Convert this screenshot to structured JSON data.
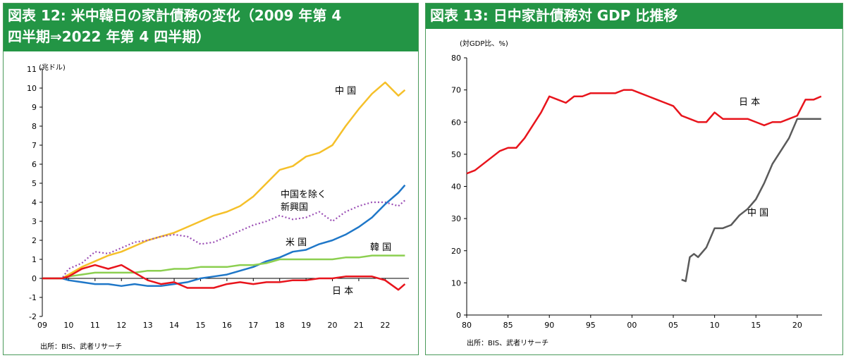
{
  "left": {
    "title_line1": "図表 12: 米中韓日の家計債務の変化（2009 年第 4",
    "title_line2": "四半期⇒2022 年第 4 四半期）",
    "unit": "(兆ドル)",
    "source": "出所：BIS、武者リサーチ",
    "annotations": {
      "china": "中 国",
      "em_line1": "中国を除く",
      "em_line2": "新興国",
      "us": "米 国",
      "korea": "韓 国",
      "japan": "日 本"
    }
  },
  "right": {
    "title": "図表 13: 日中家計債務対 GDP 比推移",
    "unit": "(対GDP比、%)",
    "source": "出所：BIS、武者リサーチ",
    "annotations": {
      "japan": "日 本",
      "china": "中 国"
    }
  },
  "colors": {
    "header_bg": "#239545",
    "china_left": "#f5c02a",
    "us": "#1f77c8",
    "korea": "#8ccf50",
    "japan": "#e8141c",
    "em_ex_china": "#9b4fb5",
    "china_right": "#5a5a5a"
  },
  "chart_data": [
    {
      "type": "line",
      "title": "図表 12: 米中韓日の家計債務の変化（2009 年第 4 四半期⇒2022 年第 4 四半期）",
      "ylabel": "(兆ドル)",
      "xlim": [
        2009,
        2022.9
      ],
      "ylim": [
        -2,
        11
      ],
      "x_ticks": [
        "09",
        "10",
        "11",
        "12",
        "13",
        "14",
        "15",
        "16",
        "17",
        "18",
        "19",
        "20",
        "21",
        "22"
      ],
      "y_ticks": [
        -2,
        -1,
        0,
        1,
        2,
        3,
        4,
        5,
        6,
        7,
        8,
        9,
        10,
        11
      ],
      "grid": false,
      "x": [
        2009.75,
        2010,
        2010.5,
        2011,
        2011.5,
        2012,
        2012.5,
        2013,
        2013.5,
        2014,
        2014.5,
        2015,
        2015.5,
        2016,
        2016.5,
        2017,
        2017.5,
        2018,
        2018.5,
        2019,
        2019.5,
        2020,
        2020.5,
        2021,
        2021.5,
        2022,
        2022.5,
        2022.75
      ],
      "series": [
        {
          "name": "中 国",
          "values": [
            0,
            0.2,
            0.6,
            0.9,
            1.2,
            1.4,
            1.7,
            2.0,
            2.2,
            2.4,
            2.7,
            3.0,
            3.3,
            3.5,
            3.8,
            4.3,
            5.0,
            5.7,
            5.9,
            6.4,
            6.6,
            7.0,
            8.0,
            8.9,
            9.7,
            10.3,
            9.6,
            9.9
          ]
        },
        {
          "name": "中国を除く新興国",
          "values": [
            0,
            0.5,
            0.8,
            1.4,
            1.3,
            1.6,
            1.9,
            2.0,
            2.2,
            2.3,
            2.2,
            1.8,
            1.9,
            2.2,
            2.5,
            2.8,
            3.0,
            3.3,
            3.1,
            3.2,
            3.5,
            3.0,
            3.5,
            3.8,
            4.0,
            4.0,
            3.8,
            4.1
          ]
        },
        {
          "name": "米 国",
          "values": [
            0,
            -0.1,
            -0.2,
            -0.3,
            -0.3,
            -0.4,
            -0.3,
            -0.4,
            -0.4,
            -0.3,
            -0.2,
            0,
            0.1,
            0.2,
            0.4,
            0.6,
            0.9,
            1.1,
            1.4,
            1.5,
            1.8,
            2.0,
            2.3,
            2.7,
            3.2,
            3.9,
            4.5,
            4.9
          ]
        },
        {
          "name": "韓 国",
          "values": [
            0,
            0.1,
            0.2,
            0.3,
            0.3,
            0.3,
            0.3,
            0.4,
            0.4,
            0.5,
            0.5,
            0.6,
            0.6,
            0.6,
            0.7,
            0.7,
            0.8,
            1.0,
            1.0,
            1.0,
            1.0,
            1.0,
            1.1,
            1.1,
            1.2,
            1.2,
            1.2,
            1.2
          ]
        },
        {
          "name": "日 本",
          "values": [
            0,
            0.1,
            0.5,
            0.7,
            0.5,
            0.7,
            0.3,
            -0.1,
            -0.3,
            -0.2,
            -0.5,
            -0.5,
            -0.5,
            -0.3,
            -0.2,
            -0.3,
            -0.2,
            -0.2,
            -0.1,
            -0.1,
            0,
            0,
            0.1,
            0.1,
            0.1,
            -0.1,
            -0.6,
            -0.3
          ]
        }
      ],
      "source": "出所：BIS、武者リサーチ"
    },
    {
      "type": "line",
      "title": "図表 13: 日中家計債務対 GDP 比推移",
      "ylabel": "(対GDP比、%)",
      "xlim": [
        1980,
        2023
      ],
      "ylim": [
        0,
        80
      ],
      "x_ticks": [
        "80",
        "85",
        "90",
        "95",
        "00",
        "05",
        "10",
        "15",
        "20"
      ],
      "y_ticks": [
        0,
        10,
        20,
        30,
        40,
        50,
        60,
        70,
        80
      ],
      "grid": false,
      "series": [
        {
          "name": "日 本",
          "x": [
            1980,
            1981,
            1982,
            1983,
            1984,
            1985,
            1986,
            1987,
            1988,
            1989,
            1990,
            1991,
            1992,
            1993,
            1994,
            1995,
            1996,
            1997,
            1998,
            1999,
            2000,
            2001,
            2002,
            2003,
            2004,
            2005,
            2006,
            2007,
            2008,
            2009,
            2010,
            2011,
            2012,
            2013,
            2014,
            2015,
            2016,
            2017,
            2018,
            2019,
            2020,
            2021,
            2022,
            2022.9
          ],
          "values": [
            44,
            45,
            47,
            49,
            51,
            52,
            52,
            55,
            59,
            63,
            68,
            67,
            66,
            68,
            68,
            69,
            69,
            69,
            69,
            70,
            70,
            69,
            68,
            67,
            66,
            65,
            62,
            61,
            60,
            60,
            63,
            61,
            61,
            61,
            61,
            60,
            59,
            60,
            60,
            61,
            62,
            67,
            67,
            68
          ]
        },
        {
          "name": "中 国",
          "x": [
            2006,
            2006.5,
            2007,
            2007.5,
            2008,
            2009,
            2010,
            2011,
            2012,
            2013,
            2014,
            2015,
            2016,
            2017,
            2018,
            2019,
            2020,
            2021,
            2022,
            2022.9
          ],
          "values": [
            11,
            10.5,
            18,
            19,
            18,
            21,
            27,
            27,
            28,
            31,
            33,
            36,
            41,
            47,
            51,
            55,
            61,
            61,
            61,
            61
          ]
        }
      ],
      "source": "出所：BIS、武者リサーチ"
    }
  ]
}
